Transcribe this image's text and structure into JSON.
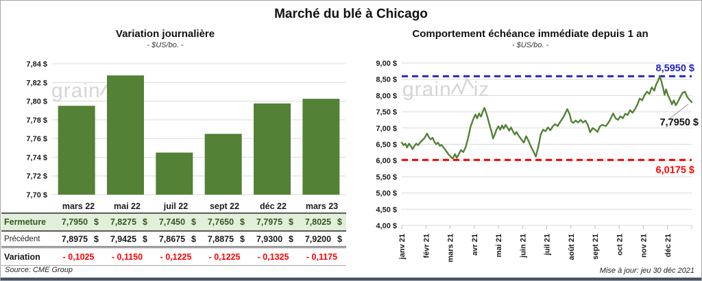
{
  "page": {
    "title": "Marché du blé à Chicago",
    "source": "Source: CME Group",
    "updated": "Mise à jour: jeu 30 déc 2021"
  },
  "watermark": {
    "pre": "grain",
    "post": "iz"
  },
  "colors": {
    "green": "#538135",
    "dark_green": "#375623",
    "light_green": "#e2efda",
    "red": "#ff0000",
    "blue": "#2424c4",
    "grid": "#d9d9d9",
    "axis": "#bfbfbf",
    "leader": "#a6a6a6",
    "band": "#44546a"
  },
  "chart_data": [
    {
      "type": "bar",
      "title": "Variation journalière",
      "subtitle": "- $US/bo. -",
      "categories": [
        "mars 22",
        "mai 22",
        "juil 22",
        "sept 22",
        "déc 22",
        "mars 23"
      ],
      "values": [
        7.795,
        7.8275,
        7.745,
        7.765,
        7.7975,
        7.8025
      ],
      "ylabel": "$US/bo.",
      "ylim": [
        7.7,
        7.84
      ],
      "ytick_step": 0.02,
      "ytick_labels": [
        "7,84 $",
        "7,82 $",
        "7,80 $",
        "7,78 $",
        "7,76 $",
        "7,74 $",
        "7,72 $",
        "7,70 $"
      ],
      "grid": true
    },
    {
      "type": "line",
      "title": "Comportement échéance immédiate depuis 1 an",
      "subtitle": "- $US/bo. -",
      "ylabel": "$US/bo.",
      "ylim": [
        4.0,
        9.0
      ],
      "ytick_step": 0.5,
      "ytick_labels": [
        "9,00 $",
        "8,50 $",
        "8,00 $",
        "7,50 $",
        "7,00 $",
        "6,50 $",
        "6,00 $",
        "5,50 $",
        "5,00 $",
        "4,50 $",
        "4,00 $"
      ],
      "xtick_labels": [
        "janv 21",
        "févr 21",
        "mars 21",
        "avr 21",
        "mai 21",
        "juin 21",
        "juil 21",
        "août 21",
        "sept 21",
        "oct 21",
        "nov 21",
        "déc 21"
      ],
      "grid": true,
      "max_line": {
        "value": 8.595,
        "label": "8,5950 $"
      },
      "min_line": {
        "value": 6.0175,
        "label": "6,0175 $"
      },
      "last_point_label": "7,7950 $",
      "series": [
        {
          "name": "échéance immédiate",
          "points": [
            [
              0.0,
              6.55
            ],
            [
              0.08,
              6.47
            ],
            [
              0.15,
              6.52
            ],
            [
              0.22,
              6.4
            ],
            [
              0.3,
              6.52
            ],
            [
              0.38,
              6.44
            ],
            [
              0.45,
              6.35
            ],
            [
              0.52,
              6.44
            ],
            [
              0.6,
              6.52
            ],
            [
              0.68,
              6.47
            ],
            [
              0.75,
              6.55
            ],
            [
              0.85,
              6.62
            ],
            [
              0.95,
              6.7
            ],
            [
              1.05,
              6.83
            ],
            [
              1.12,
              6.72
            ],
            [
              1.2,
              6.65
            ],
            [
              1.28,
              6.7
            ],
            [
              1.35,
              6.58
            ],
            [
              1.42,
              6.5
            ],
            [
              1.5,
              6.55
            ],
            [
              1.58,
              6.45
            ],
            [
              1.65,
              6.48
            ],
            [
              1.75,
              6.38
            ],
            [
              1.85,
              6.28
            ],
            [
              1.95,
              6.18
            ],
            [
              2.05,
              6.1
            ],
            [
              2.12,
              6.06
            ],
            [
              2.2,
              6.2
            ],
            [
              2.28,
              6.08
            ],
            [
              2.35,
              6.18
            ],
            [
              2.45,
              6.32
            ],
            [
              2.55,
              6.26
            ],
            [
              2.65,
              6.42
            ],
            [
              2.75,
              6.7
            ],
            [
              2.85,
              7.05
            ],
            [
              2.95,
              7.25
            ],
            [
              3.05,
              7.42
            ],
            [
              3.12,
              7.3
            ],
            [
              3.2,
              7.45
            ],
            [
              3.28,
              7.35
            ],
            [
              3.35,
              7.5
            ],
            [
              3.42,
              7.62
            ],
            [
              3.5,
              7.45
            ],
            [
              3.58,
              7.25
            ],
            [
              3.65,
              7.05
            ],
            [
              3.72,
              6.88
            ],
            [
              3.78,
              6.68
            ],
            [
              3.85,
              6.8
            ],
            [
              3.92,
              6.95
            ],
            [
              4.0,
              7.05
            ],
            [
              4.08,
              6.95
            ],
            [
              4.15,
              7.08
            ],
            [
              4.22,
              6.98
            ],
            [
              4.3,
              7.1
            ],
            [
              4.38,
              7.0
            ],
            [
              4.45,
              6.92
            ],
            [
              4.52,
              7.02
            ],
            [
              4.6,
              6.9
            ],
            [
              4.68,
              6.8
            ],
            [
              4.75,
              6.88
            ],
            [
              4.85,
              6.75
            ],
            [
              4.95,
              6.65
            ],
            [
              5.05,
              6.55
            ],
            [
              5.15,
              6.75
            ],
            [
              5.25,
              6.6
            ],
            [
              5.35,
              6.42
            ],
            [
              5.45,
              6.28
            ],
            [
              5.55,
              6.12
            ],
            [
              5.65,
              6.42
            ],
            [
              5.75,
              6.8
            ],
            [
              5.85,
              6.95
            ],
            [
              5.95,
              6.9
            ],
            [
              6.05,
              7.02
            ],
            [
              6.15,
              6.93
            ],
            [
              6.25,
              7.05
            ],
            [
              6.35,
              7.12
            ],
            [
              6.45,
              7.06
            ],
            [
              6.55,
              7.18
            ],
            [
              6.7,
              7.35
            ],
            [
              6.85,
              7.58
            ],
            [
              6.95,
              7.42
            ],
            [
              7.02,
              7.2
            ],
            [
              7.1,
              7.16
            ],
            [
              7.2,
              7.23
            ],
            [
              7.3,
              7.17
            ],
            [
              7.4,
              7.25
            ],
            [
              7.5,
              7.17
            ],
            [
              7.6,
              7.23
            ],
            [
              7.7,
              7.1
            ],
            [
              7.8,
              6.87
            ],
            [
              7.9,
              7.0
            ],
            [
              8.0,
              6.95
            ],
            [
              8.1,
              6.88
            ],
            [
              8.2,
              7.05
            ],
            [
              8.3,
              7.1
            ],
            [
              8.45,
              7.06
            ],
            [
              8.6,
              7.22
            ],
            [
              8.75,
              7.45
            ],
            [
              8.85,
              7.3
            ],
            [
              8.95,
              7.25
            ],
            [
              9.05,
              7.36
            ],
            [
              9.15,
              7.3
            ],
            [
              9.25,
              7.44
            ],
            [
              9.35,
              7.4
            ],
            [
              9.45,
              7.55
            ],
            [
              9.55,
              7.47
            ],
            [
              9.65,
              7.58
            ],
            [
              9.75,
              7.72
            ],
            [
              9.85,
              7.91
            ],
            [
              9.95,
              7.85
            ],
            [
              10.05,
              8.02
            ],
            [
              10.15,
              8.12
            ],
            [
              10.25,
              8.05
            ],
            [
              10.35,
              8.25
            ],
            [
              10.45,
              8.15
            ],
            [
              10.52,
              8.32
            ],
            [
              10.6,
              8.45
            ],
            [
              10.68,
              8.595
            ],
            [
              10.75,
              8.42
            ],
            [
              10.82,
              8.22
            ],
            [
              10.88,
              8.02
            ],
            [
              10.94,
              8.19
            ],
            [
              11.02,
              8.0
            ],
            [
              11.1,
              7.88
            ],
            [
              11.18,
              7.73
            ],
            [
              11.26,
              7.85
            ],
            [
              11.34,
              7.7
            ],
            [
              11.42,
              7.8
            ],
            [
              11.52,
              7.95
            ],
            [
              11.62,
              8.08
            ],
            [
              11.72,
              8.12
            ],
            [
              11.82,
              7.95
            ],
            [
              11.92,
              7.86
            ],
            [
              12.0,
              7.795
            ]
          ]
        }
      ]
    }
  ],
  "table": {
    "currency": "$",
    "col_headers": [
      "mars 22",
      "mai 22",
      "juil 22",
      "sept 22",
      "déc 22",
      "mars 23"
    ],
    "rows": [
      {
        "kind": "fermeture",
        "label": "Fermeture",
        "values": [
          "7,7950",
          "7,8275",
          "7,7450",
          "7,7650",
          "7,7975",
          "7,8025"
        ],
        "currency": true
      },
      {
        "kind": "precedent",
        "label": "Précédent",
        "values": [
          "7,8975",
          "7,9425",
          "7,8675",
          "7,8875",
          "7,9300",
          "7,9200"
        ],
        "currency": true
      },
      {
        "kind": "variation",
        "label": "Variation",
        "values": [
          "- 0,1025",
          "- 0,1150",
          "- 0,1225",
          "- 0,1225",
          "- 0,1325",
          "- 0,1175"
        ],
        "currency": false
      }
    ]
  }
}
